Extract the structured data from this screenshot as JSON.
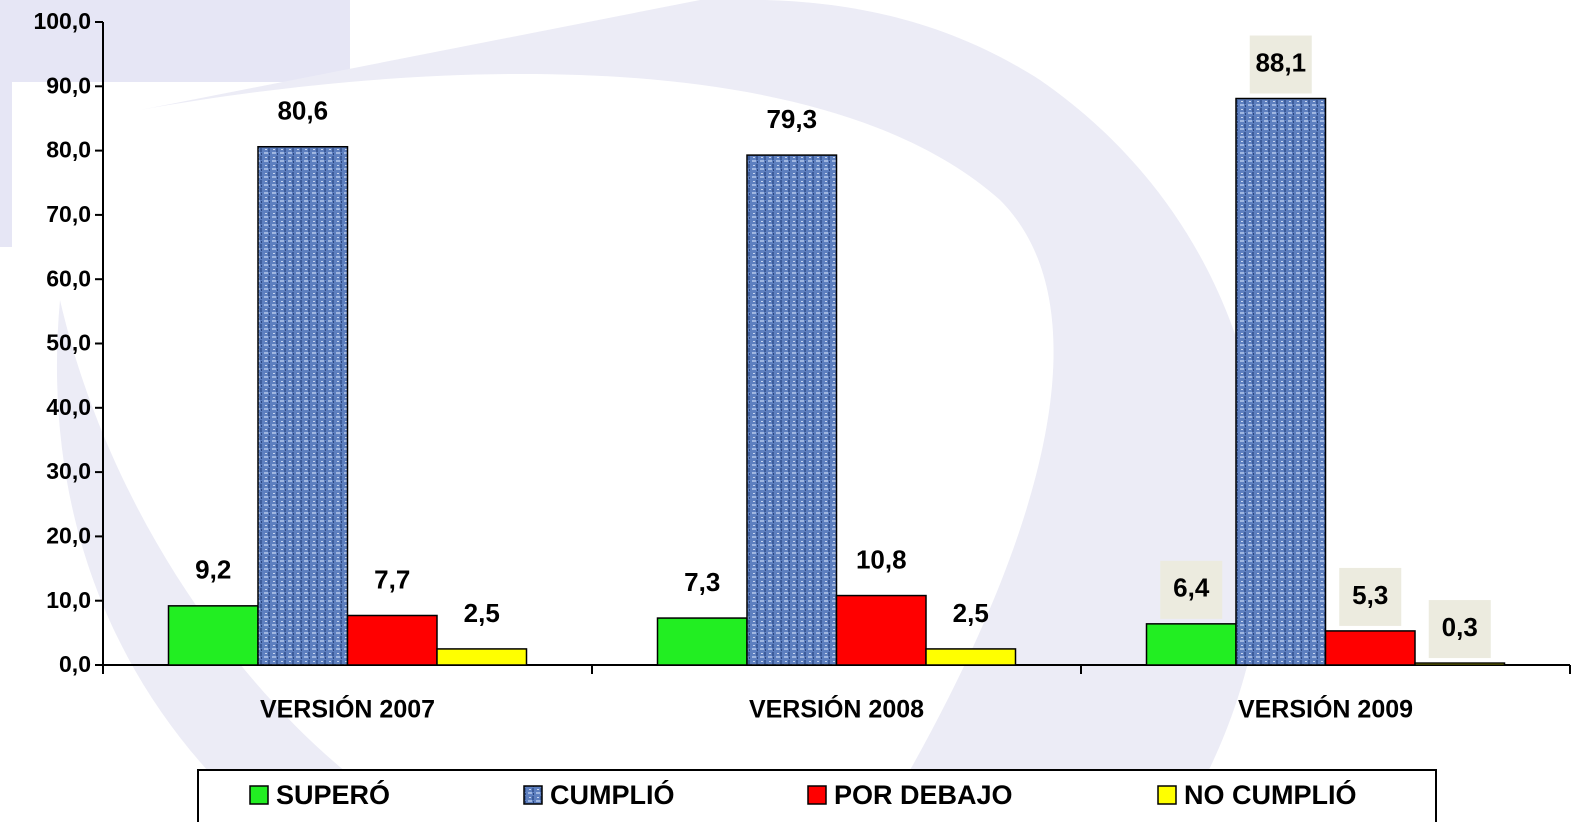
{
  "chart_data": {
    "type": "bar",
    "categories": [
      "VERSIÓN 2007",
      "VERSIÓN 2008",
      "VERSIÓN 2009"
    ],
    "series": [
      {
        "name": "SUPERÓ",
        "color": "#22ee22",
        "values": [
          9.2,
          7.3,
          6.4
        ],
        "value_labels": [
          "9,2",
          "7,3",
          "6,4"
        ]
      },
      {
        "name": "CUMPLIÓ",
        "color": "#5d7fbf",
        "values": [
          80.6,
          79.3,
          88.1
        ],
        "value_labels": [
          "80,6",
          "79,3",
          "88,1"
        ]
      },
      {
        "name": "POR DEBAJO",
        "color": "#ff0000",
        "values": [
          7.7,
          10.8,
          5.3
        ],
        "value_labels": [
          "7,7",
          "10,8",
          "5,3"
        ]
      },
      {
        "name": "NO CUMPLIÓ",
        "color": "#ffff00",
        "values": [
          2.5,
          2.5,
          0.3
        ],
        "value_labels": [
          "2,5",
          "2,5",
          "0,3"
        ]
      }
    ],
    "ylim": [
      0,
      100
    ],
    "yticks": [
      {
        "value": 0,
        "label": "0,0"
      },
      {
        "value": 10,
        "label": "10,0"
      },
      {
        "value": 20,
        "label": "20,0"
      },
      {
        "value": 30,
        "label": "30,0"
      },
      {
        "value": 40,
        "label": "40,0"
      },
      {
        "value": 50,
        "label": "50,0"
      },
      {
        "value": 60,
        "label": "60,0"
      },
      {
        "value": 70,
        "label": "70,0"
      },
      {
        "value": 80,
        "label": "80,0"
      },
      {
        "value": 90,
        "label": "90,0"
      },
      {
        "value": 100,
        "label": "100,0"
      }
    ],
    "legend": "bottom"
  }
}
